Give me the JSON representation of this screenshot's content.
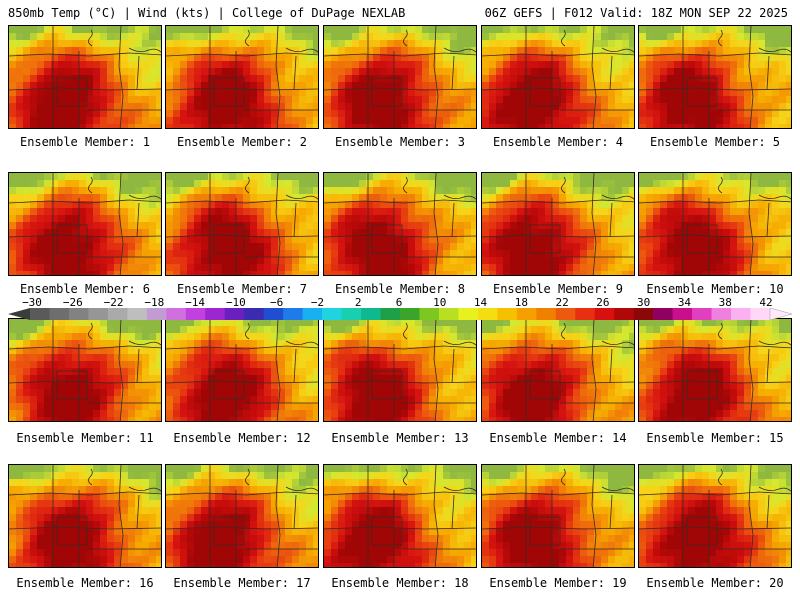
{
  "header": {
    "left": "850mb Temp (°C) | Wind (kts) | College of DuPage NEXLAB",
    "right": "06Z GEFS | F012 Valid: 18Z MON SEP 22 2025"
  },
  "panels": [
    {
      "caption": "Ensemble Member: 1"
    },
    {
      "caption": "Ensemble Member: 2"
    },
    {
      "caption": "Ensemble Member: 3"
    },
    {
      "caption": "Ensemble Member: 4"
    },
    {
      "caption": "Ensemble Member: 5"
    },
    {
      "caption": "Ensemble Member: 6"
    },
    {
      "caption": "Ensemble Member: 7"
    },
    {
      "caption": "Ensemble Member: 8"
    },
    {
      "caption": "Ensemble Member: 9"
    },
    {
      "caption": "Ensemble Member: 10"
    },
    {
      "caption": "Ensemble Member: 11"
    },
    {
      "caption": "Ensemble Member: 12"
    },
    {
      "caption": "Ensemble Member: 13"
    },
    {
      "caption": "Ensemble Member: 14"
    },
    {
      "caption": "Ensemble Member: 15"
    },
    {
      "caption": "Ensemble Member: 16"
    },
    {
      "caption": "Ensemble Member: 17"
    },
    {
      "caption": "Ensemble Member: 18"
    },
    {
      "caption": "Ensemble Member: 19"
    },
    {
      "caption": "Ensemble Member: 20"
    }
  ],
  "colorbar": {
    "tick_labels": [
      "−30",
      "−26",
      "−22",
      "−18",
      "−14",
      "−10",
      "−6",
      "−2",
      "2",
      "6",
      "10",
      "14",
      "18",
      "22",
      "26",
      "30",
      "34",
      "38",
      "42"
    ],
    "colors": [
      "#5a5a5a",
      "#6e6e6e",
      "#828282",
      "#969696",
      "#aaaaaa",
      "#bebebe",
      "#c39bd3",
      "#d070e0",
      "#c040e0",
      "#9c27d0",
      "#6a1fc0",
      "#3a2bb0",
      "#1f4fd0",
      "#1e7be8",
      "#19b0f0",
      "#1fd3e0",
      "#18d0b0",
      "#10b890",
      "#1fa048",
      "#3aa52a",
      "#7cc820",
      "#b8e020",
      "#e8f020",
      "#f5de10",
      "#f5c000",
      "#f5a000",
      "#f08000",
      "#ec5a10",
      "#e83010",
      "#d81010",
      "#b00808",
      "#8c0808",
      "#900060",
      "#c8108c",
      "#e040c0",
      "#f080e0",
      "#fbb0f0",
      "#ffd8f8"
    ]
  }
}
